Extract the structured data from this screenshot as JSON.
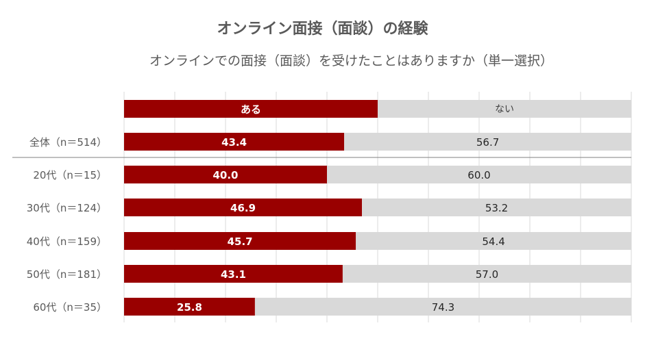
{
  "title": "オンライン面接（面談）の経験",
  "subtitle": "オンラインでの面接（面談）を受けたことはありますか（単一選択）",
  "colors": {
    "yes": "#990000",
    "no": "#d9d9d9",
    "grid": "#d9d9d9",
    "text": "#595959"
  },
  "chart_data": {
    "type": "bar",
    "stacked": true,
    "orientation": "horizontal",
    "xlim": [
      0,
      100
    ],
    "grid": true,
    "legend": [
      "ある",
      "ない"
    ],
    "legend_placement": "top",
    "categories": [
      "全体（n＝514）",
      "20代（n＝15）",
      "30代（n＝124）",
      "40代（n＝159）",
      "50代（n＝181）",
      "60代（n＝35）"
    ],
    "series": [
      {
        "name": "ある",
        "values": [
          43.4,
          40.0,
          46.9,
          45.7,
          43.1,
          25.8
        ],
        "labels": [
          "43.4",
          "40.0",
          "46.9",
          "45.7",
          "43.1",
          "25.8"
        ]
      },
      {
        "name": "ない",
        "values": [
          56.7,
          60.0,
          53.2,
          54.4,
          57.0,
          74.3
        ],
        "labels": [
          "56.7",
          "60.0",
          "53.2",
          "54.4",
          "57.0",
          "74.3"
        ]
      }
    ]
  }
}
